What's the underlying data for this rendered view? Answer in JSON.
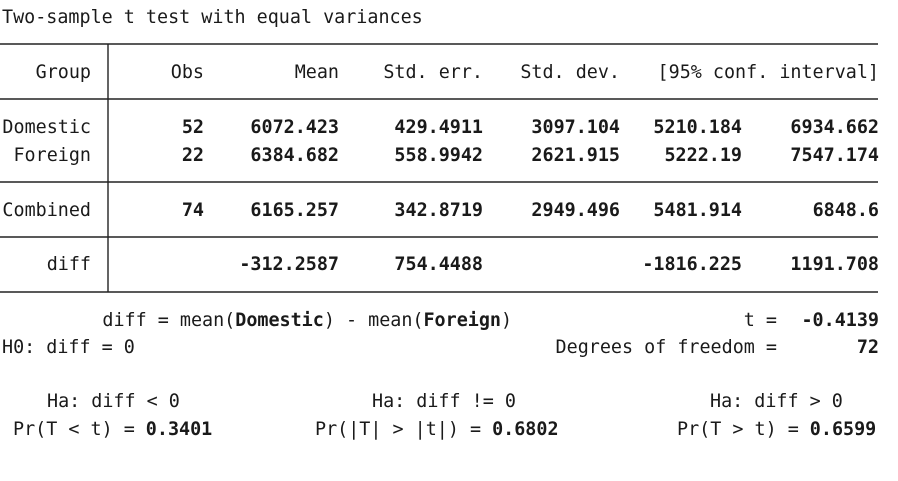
{
  "title": "Two-sample t test with equal variances",
  "table": {
    "header": [
      "Group",
      "Obs",
      "Mean",
      "Std. err.",
      "Std. dev.",
      "[95% conf. interval]"
    ],
    "rows": [
      {
        "group": "Domestic",
        "obs": "52",
        "mean": "6072.423",
        "std_err": "429.4911",
        "std_dev": "3097.104",
        "ci_low": "5210.184",
        "ci_high": "6934.662"
      },
      {
        "group": "Foreign",
        "obs": "22",
        "mean": "6384.682",
        "std_err": "558.9942",
        "std_dev": "2621.915",
        "ci_low": "5222.19",
        "ci_high": "7547.174"
      },
      {
        "group": "Combined",
        "obs": "74",
        "mean": "6165.257",
        "std_err": "342.8719",
        "std_dev": "2949.496",
        "ci_low": "5481.914",
        "ci_high": "6848.6"
      },
      {
        "group": "diff",
        "mean": "-312.2587",
        "std_err": "754.4488",
        "ci_low": "-1816.225",
        "ci_high": "1191.708"
      }
    ]
  },
  "diff_definition": {
    "prefix": "diff = mean(",
    "group1": "Domestic",
    "middle": ") - mean(",
    "group2": "Foreign",
    "suffix": ")"
  },
  "t_stat": {
    "label": "t =",
    "value": "-0.4139"
  },
  "null_hypothesis": "H0: diff = 0",
  "degrees_of_freedom": {
    "label": "Degrees of freedom =",
    "value": "72"
  },
  "alternatives": [
    {
      "hypothesis": "Ha: diff < 0",
      "prob_label": "Pr(T < t) =",
      "prob_value": "0.3401"
    },
    {
      "hypothesis": "Ha: diff != 0",
      "prob_label": "Pr(|T| > |t|) =",
      "prob_value": "0.6802"
    },
    {
      "hypothesis": "Ha: diff > 0",
      "prob_label": "Pr(T > t) =",
      "prob_value": "0.6599"
    }
  ]
}
